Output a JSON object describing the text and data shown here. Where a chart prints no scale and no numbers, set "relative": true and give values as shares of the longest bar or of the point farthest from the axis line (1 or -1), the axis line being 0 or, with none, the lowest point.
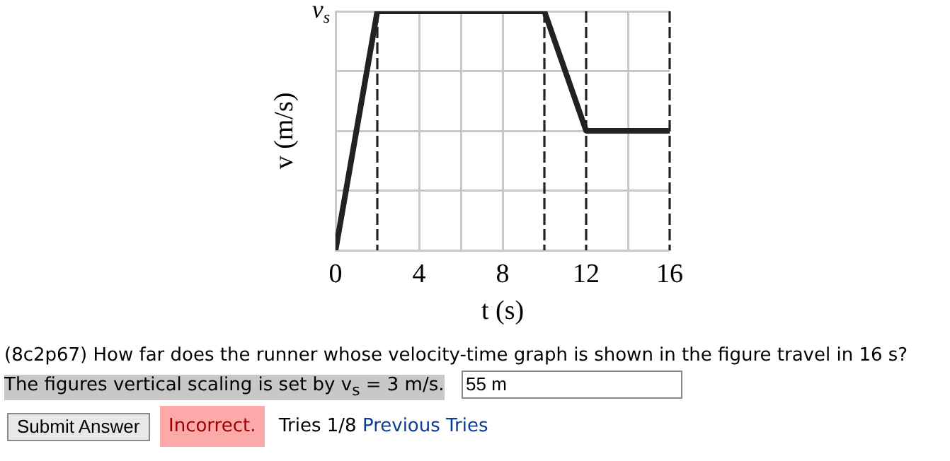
{
  "chart_data": {
    "type": "line",
    "xlabel": "t (s)",
    "ylabel": "v (m/s)",
    "x": [
      0,
      2,
      10,
      12,
      16
    ],
    "series": [
      {
        "color": "#222222",
        "values": [
          0,
          1,
          1,
          0.5,
          0.5
        ]
      }
    ],
    "xlim": [
      0,
      16
    ],
    "xticks": [
      0,
      4,
      {
        "value": 6,
        "label": null
      },
      8,
      12,
      {
        "value": 14,
        "label": null
      },
      16
    ],
    "relative": true,
    "grid": true,
    "legend": false,
    "marker": "none",
    "line_style": "solid",
    "ref_lines": [
      {
        "axis": "x",
        "value": 2,
        "color": "#222222",
        "line_style": "dashed"
      },
      {
        "axis": "x",
        "value": 10,
        "color": "#222222",
        "line_style": "dashed"
      },
      {
        "axis": "x",
        "value": 12,
        "color": "#222222",
        "line_style": "dashed"
      },
      {
        "axis": "x",
        "value": 16,
        "color": "#222222",
        "line_style": "dashed"
      }
    ],
    "annotations": [
      "v$_{s}$",
      "(8c2p67) How far does the runner whose velocity-time graph is shown in the figure travel in 16 s?",
      "The figures vertical scaling is set by v$_{s}$ = 3 m/s.",
      "55 m",
      "Submit Answer",
      "Incorrect.",
      "Tries 1/8",
      "Previous Tries"
    ]
  }
}
